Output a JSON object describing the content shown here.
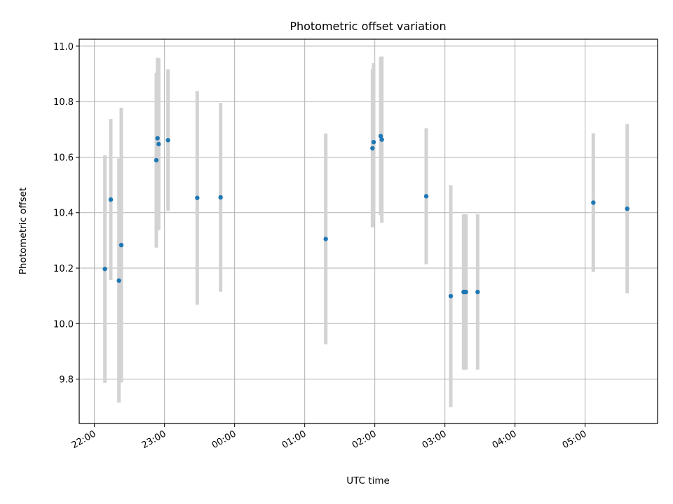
{
  "chart_data": {
    "type": "scatter",
    "title": "Photometric offset variation",
    "xlabel": "UTC time",
    "ylabel": "Photometric offset",
    "x_axis_type": "time",
    "xlim": [
      "21:47",
      "06:02"
    ],
    "ylim": [
      9.64,
      11.025
    ],
    "x_ticks": [
      "22:00",
      "23:00",
      "00:00",
      "01:00",
      "02:00",
      "03:00",
      "04:00",
      "05:00"
    ],
    "y_ticks": [
      9.8,
      10.0,
      10.2,
      10.4,
      10.6,
      10.8,
      11.0
    ],
    "grid": true,
    "x_tick_rotation": 30,
    "point_color": "#1f77b4",
    "errorbar_color": "#d3d3d3",
    "points": [
      {
        "x": "22:09",
        "y": 10.197,
        "err": 0.41
      },
      {
        "x": "22:14",
        "y": 10.447,
        "err": 0.29
      },
      {
        "x": "22:21",
        "y": 10.155,
        "err": 0.44
      },
      {
        "x": "22:23",
        "y": 10.283,
        "err": 0.495
      },
      {
        "x": "22:53",
        "y": 10.589,
        "err": 0.315
      },
      {
        "x": "22:54",
        "y": 10.668,
        "err": 0.29
      },
      {
        "x": "22:55",
        "y": 10.647,
        "err": 0.31
      },
      {
        "x": "23:03",
        "y": 10.661,
        "err": 0.255
      },
      {
        "x": "23:28",
        "y": 10.453,
        "err": 0.385
      },
      {
        "x": "23:48",
        "y": 10.455,
        "err": 0.34
      },
      {
        "x": "01:18",
        "y": 10.305,
        "err": 0.38
      },
      {
        "x": "01:58",
        "y": 10.632,
        "err": 0.285
      },
      {
        "x": "01:59",
        "y": 10.654,
        "err": 0.285
      },
      {
        "x": "02:05",
        "y": 10.676,
        "err": 0.285
      },
      {
        "x": "02:06",
        "y": 10.663,
        "err": 0.3
      },
      {
        "x": "02:44",
        "y": 10.459,
        "err": 0.245
      },
      {
        "x": "03:05",
        "y": 10.099,
        "err": 0.4
      },
      {
        "x": "03:16",
        "y": 10.114,
        "err": 0.28
      },
      {
        "x": "03:17",
        "y": 10.114,
        "err": 0.28
      },
      {
        "x": "03:18",
        "y": 10.114,
        "err": 0.28
      },
      {
        "x": "03:28",
        "y": 10.114,
        "err": 0.28
      },
      {
        "x": "05:07",
        "y": 10.436,
        "err": 0.25
      },
      {
        "x": "05:36",
        "y": 10.414,
        "err": 0.305
      }
    ]
  }
}
